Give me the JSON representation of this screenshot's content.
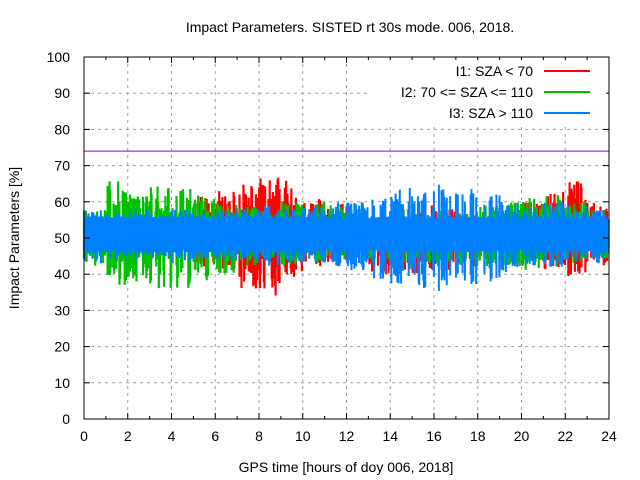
{
  "chart_data": {
    "type": "line",
    "title": "Impact Parameters. SISTED rt 30s mode. 006, 2018.",
    "xlabel": "GPS time [hours of doy 006, 2018]",
    "ylabel": "Impact Parameters [%]",
    "xlim": [
      0,
      24
    ],
    "ylim": [
      0,
      100
    ],
    "xticks": [
      0,
      2,
      4,
      6,
      8,
      10,
      12,
      14,
      16,
      18,
      20,
      22,
      24
    ],
    "yticks": [
      0,
      10,
      20,
      30,
      40,
      50,
      60,
      70,
      80,
      90,
      100
    ],
    "xtick_labels": [
      "0",
      "2",
      "4",
      "6",
      "8",
      "10",
      "12",
      "14",
      "16",
      "18",
      "20",
      "22",
      "24"
    ],
    "ytick_labels": [
      "0",
      "10",
      "20",
      "30",
      "40",
      "50",
      "60",
      "70",
      "80",
      "90",
      "100"
    ],
    "grid": true,
    "legend_position": "top-right",
    "threshold_line": {
      "value": 74,
      "color": "#9400d3"
    },
    "series": [
      {
        "name": "I1: SZA < 70",
        "color": "#ff0000",
        "hourly_envelope": {
          "hours": [
            5,
            6,
            7,
            8,
            9,
            10,
            11,
            13,
            14,
            15,
            16,
            17,
            20,
            21,
            22,
            23
          ],
          "max": [
            62,
            63,
            65,
            67,
            66,
            61,
            60,
            56,
            57,
            60,
            58,
            57,
            60,
            63,
            66,
            60
          ],
          "min": [
            42,
            40,
            36,
            34,
            38,
            42,
            43,
            40,
            41,
            39,
            40,
            42,
            42,
            41,
            39,
            42
          ]
        }
      },
      {
        "name": "I2: 70 <= SZA <= 110",
        "color": "#00c000",
        "hourly_envelope": {
          "hours": [
            0,
            1,
            2,
            3,
            4,
            5,
            6,
            7,
            8,
            9,
            10,
            11,
            12,
            13,
            14,
            15,
            16,
            17,
            18,
            19,
            20,
            21,
            22,
            23
          ],
          "max": [
            58,
            66,
            63,
            65,
            64,
            62,
            60,
            59,
            58,
            60,
            61,
            59,
            57,
            56,
            58,
            57,
            58,
            57,
            59,
            60,
            61,
            62,
            60,
            58
          ],
          "min": [
            42,
            37,
            38,
            36,
            35,
            38,
            40,
            42,
            43,
            42,
            43,
            44,
            44,
            44,
            43,
            43,
            43,
            42,
            42,
            42,
            41,
            42,
            43,
            44
          ]
        }
      },
      {
        "name": "I3: SZA > 110",
        "color": "#0080ff",
        "hourly_envelope": {
          "hours": [
            0,
            1,
            2,
            3,
            4,
            5,
            6,
            7,
            8,
            9,
            10,
            11,
            12,
            13,
            14,
            15,
            16,
            17,
            18,
            19,
            20,
            21,
            22,
            23
          ],
          "max": [
            58,
            57,
            58,
            57,
            58,
            57,
            58,
            58,
            59,
            58,
            59,
            60,
            60,
            61,
            64,
            63,
            65,
            64,
            62,
            60,
            59,
            60,
            59,
            58
          ],
          "min": [
            43,
            44,
            44,
            44,
            43,
            44,
            44,
            43,
            42,
            43,
            43,
            42,
            41,
            38,
            37,
            36,
            35,
            37,
            38,
            40,
            42,
            42,
            43,
            43
          ]
        },
        "core_band": [
          46,
          56
        ]
      }
    ]
  }
}
